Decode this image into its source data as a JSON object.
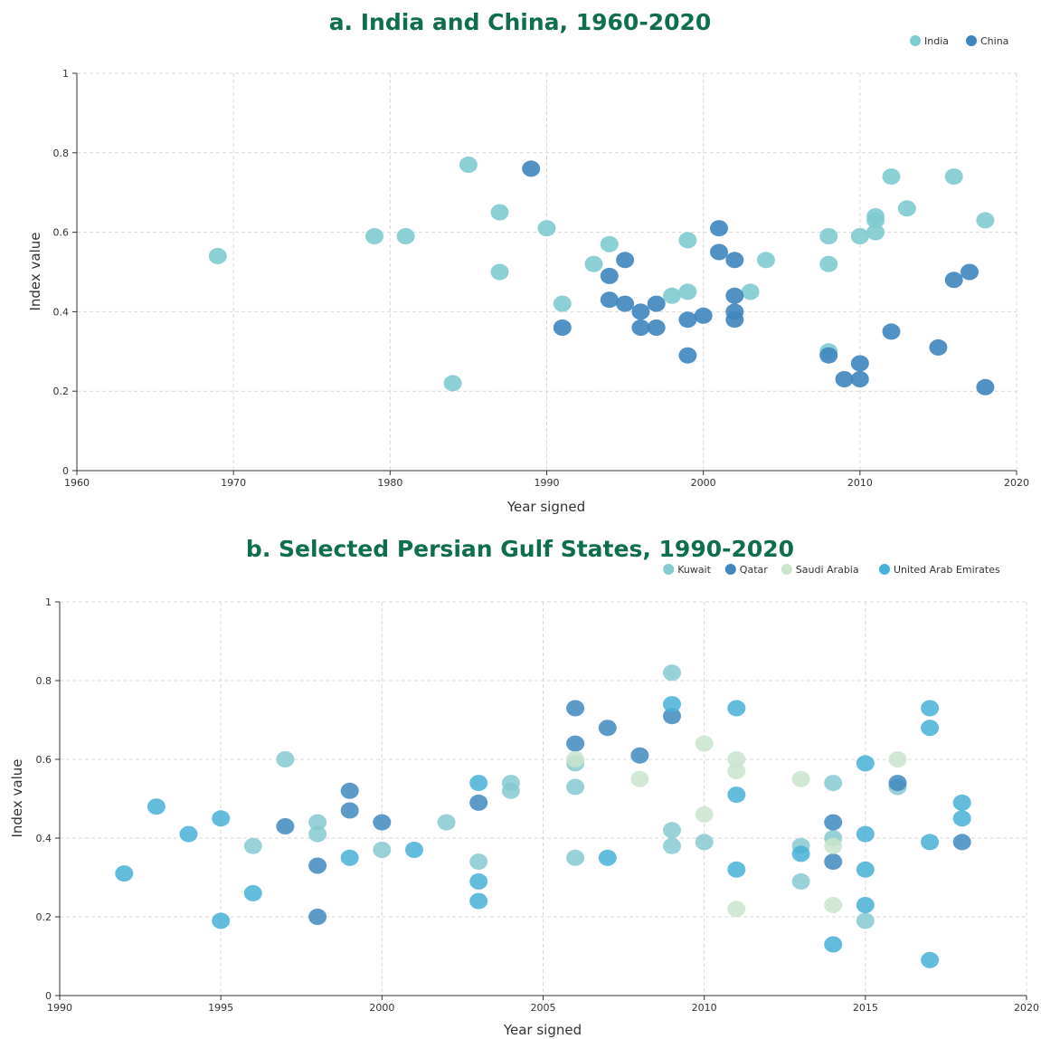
{
  "colors": {
    "title": "#0f6e4c",
    "india": "#7fcbd0",
    "china": "#3f85bd",
    "kuwait": "#86c9d0",
    "qatar": "#4088bd",
    "saudi_arabia": "#c9e5cc",
    "uae": "#48b0d6"
  },
  "chart_data": [
    {
      "type": "scatter",
      "title": "a. India and China, 1960-2020",
      "xlabel": "Year signed",
      "ylabel": "Index value",
      "xlim": [
        1960,
        2020
      ],
      "ylim": [
        0,
        1
      ],
      "xticks": [
        "1960",
        "1970",
        "1980",
        "1990",
        "2000",
        "2010",
        "2020"
      ],
      "yticks": [
        "0",
        "0.2",
        "0.4",
        "0.6",
        "0.8",
        "1"
      ],
      "grid": true,
      "legend_position": "top-right",
      "series": [
        {
          "name": "India",
          "color_key": "india",
          "points": [
            [
              1969,
              0.54
            ],
            [
              1979,
              0.59
            ],
            [
              1981,
              0.59
            ],
            [
              1984,
              0.22
            ],
            [
              1985,
              0.77
            ],
            [
              1987,
              0.65
            ],
            [
              1987,
              0.5
            ],
            [
              1990,
              0.61
            ],
            [
              1991,
              0.42
            ],
            [
              1993,
              0.52
            ],
            [
              1994,
              0.57
            ],
            [
              1998,
              0.44
            ],
            [
              1999,
              0.45
            ],
            [
              1999,
              0.58
            ],
            [
              2003,
              0.45
            ],
            [
              2004,
              0.53
            ],
            [
              2008,
              0.59
            ],
            [
              2008,
              0.52
            ],
            [
              2008,
              0.3
            ],
            [
              2010,
              0.59
            ],
            [
              2011,
              0.64
            ],
            [
              2011,
              0.63
            ],
            [
              2011,
              0.6
            ],
            [
              2012,
              0.74
            ],
            [
              2013,
              0.66
            ],
            [
              2016,
              0.74
            ],
            [
              2018,
              0.63
            ]
          ]
        },
        {
          "name": "China",
          "color_key": "china",
          "points": [
            [
              1989,
              0.76
            ],
            [
              1991,
              0.36
            ],
            [
              1994,
              0.49
            ],
            [
              1994,
              0.43
            ],
            [
              1995,
              0.53
            ],
            [
              1995,
              0.42
            ],
            [
              1996,
              0.4
            ],
            [
              1996,
              0.36
            ],
            [
              1997,
              0.42
            ],
            [
              1997,
              0.36
            ],
            [
              1999,
              0.38
            ],
            [
              1999,
              0.29
            ],
            [
              2000,
              0.39
            ],
            [
              2001,
              0.61
            ],
            [
              2001,
              0.55
            ],
            [
              2002,
              0.53
            ],
            [
              2002,
              0.44
            ],
            [
              2002,
              0.4
            ],
            [
              2002,
              0.38
            ],
            [
              2008,
              0.29
            ],
            [
              2009,
              0.23
            ],
            [
              2010,
              0.27
            ],
            [
              2010,
              0.23
            ],
            [
              2012,
              0.35
            ],
            [
              2015,
              0.31
            ],
            [
              2016,
              0.48
            ],
            [
              2017,
              0.5
            ],
            [
              2018,
              0.21
            ]
          ]
        }
      ]
    },
    {
      "type": "scatter",
      "title": "b. Selected Persian Gulf States, 1990-2020",
      "xlabel": "Year signed",
      "ylabel": "Index value",
      "xlim": [
        1990,
        2020
      ],
      "ylim": [
        0,
        1
      ],
      "xticks": [
        "1990",
        "1995",
        "2000",
        "2005",
        "2010",
        "2015",
        "2020"
      ],
      "yticks": [
        "0",
        "0.2",
        "0.4",
        "0.6",
        "0.8",
        "1"
      ],
      "grid": true,
      "legend_position": "top-right",
      "series": [
        {
          "name": "Kuwait",
          "color_key": "kuwait",
          "points": [
            [
              1996,
              0.38
            ],
            [
              1997,
              0.6
            ],
            [
              1998,
              0.44
            ],
            [
              1998,
              0.41
            ],
            [
              2000,
              0.37
            ],
            [
              2002,
              0.44
            ],
            [
              2003,
              0.34
            ],
            [
              2004,
              0.54
            ],
            [
              2004,
              0.52
            ],
            [
              2006,
              0.59
            ],
            [
              2006,
              0.53
            ],
            [
              2006,
              0.35
            ],
            [
              2009,
              0.82
            ],
            [
              2009,
              0.42
            ],
            [
              2009,
              0.38
            ],
            [
              2010,
              0.39
            ],
            [
              2013,
              0.38
            ],
            [
              2013,
              0.29
            ],
            [
              2014,
              0.54
            ],
            [
              2014,
              0.4
            ],
            [
              2015,
              0.19
            ],
            [
              2016,
              0.53
            ]
          ]
        },
        {
          "name": "Qatar",
          "color_key": "qatar",
          "points": [
            [
              1997,
              0.43
            ],
            [
              1998,
              0.33
            ],
            [
              1998,
              0.2
            ],
            [
              1999,
              0.52
            ],
            [
              1999,
              0.47
            ],
            [
              2000,
              0.44
            ],
            [
              2003,
              0.49
            ],
            [
              2006,
              0.73
            ],
            [
              2006,
              0.64
            ],
            [
              2007,
              0.68
            ],
            [
              2008,
              0.61
            ],
            [
              2009,
              0.71
            ],
            [
              2014,
              0.44
            ],
            [
              2014,
              0.34
            ],
            [
              2016,
              0.54
            ],
            [
              2018,
              0.39
            ]
          ]
        },
        {
          "name": "Saudi Arabia",
          "color_key": "saudi_arabia",
          "points": [
            [
              2006,
              0.6
            ],
            [
              2008,
              0.55
            ],
            [
              2010,
              0.64
            ],
            [
              2010,
              0.46
            ],
            [
              2011,
              0.6
            ],
            [
              2011,
              0.57
            ],
            [
              2011,
              0.22
            ],
            [
              2013,
              0.55
            ],
            [
              2014,
              0.38
            ],
            [
              2014,
              0.23
            ],
            [
              2016,
              0.6
            ]
          ]
        },
        {
          "name": "United Arab Emirates",
          "color_key": "uae",
          "points": [
            [
              1992,
              0.31
            ],
            [
              1993,
              0.48
            ],
            [
              1994,
              0.41
            ],
            [
              1995,
              0.45
            ],
            [
              1995,
              0.19
            ],
            [
              1996,
              0.26
            ],
            [
              1999,
              0.35
            ],
            [
              2001,
              0.37
            ],
            [
              2003,
              0.54
            ],
            [
              2003,
              0.29
            ],
            [
              2003,
              0.24
            ],
            [
              2007,
              0.35
            ],
            [
              2009,
              0.74
            ],
            [
              2011,
              0.73
            ],
            [
              2011,
              0.51
            ],
            [
              2011,
              0.32
            ],
            [
              2013,
              0.36
            ],
            [
              2014,
              0.13
            ],
            [
              2015,
              0.59
            ],
            [
              2015,
              0.41
            ],
            [
              2015,
              0.32
            ],
            [
              2015,
              0.23
            ],
            [
              2017,
              0.73
            ],
            [
              2017,
              0.68
            ],
            [
              2017,
              0.39
            ],
            [
              2017,
              0.09
            ],
            [
              2018,
              0.49
            ],
            [
              2018,
              0.45
            ]
          ]
        }
      ]
    }
  ]
}
